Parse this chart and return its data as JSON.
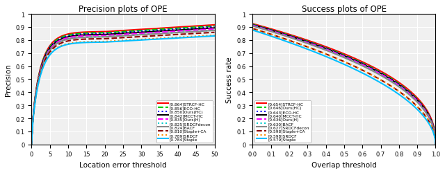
{
  "left_title": "Precision plots of OPE",
  "right_title": "Success plots of OPE",
  "left_xlabel": "Location error threshold",
  "left_ylabel": "Precision",
  "right_xlabel": "Overlap threshold",
  "right_ylabel": "Success rate",
  "left_xlim": [
    0,
    50
  ],
  "left_ylim": [
    0,
    1
  ],
  "right_xlim": [
    0,
    1
  ],
  "right_ylim": [
    0,
    1
  ],
  "left_xticks": [
    0,
    5,
    10,
    15,
    20,
    25,
    30,
    35,
    40,
    45,
    50
  ],
  "left_yticks": [
    0,
    0.1,
    0.2,
    0.3,
    0.4,
    0.5,
    0.6,
    0.7,
    0.8,
    0.9,
    1.0
  ],
  "right_xticks": [
    0,
    0.1,
    0.2,
    0.3,
    0.4,
    0.5,
    0.6,
    0.7,
    0.8,
    0.9,
    1.0
  ],
  "right_yticks": [
    0,
    0.1,
    0.2,
    0.3,
    0.4,
    0.5,
    0.6,
    0.7,
    0.8,
    0.9,
    1.0
  ],
  "precision_curves": [
    {
      "label": "[0.864]STRCF-HC",
      "score": 0.864,
      "color": "#FF0000",
      "lw": 1.5,
      "ls": "-"
    },
    {
      "label": "[0.856]ECO-HC",
      "score": 0.856,
      "color": "#00CC00",
      "lw": 1.5,
      "ls": "--"
    },
    {
      "label": "[0.850]Ours(HC)",
      "score": 0.85,
      "color": "#0000EE",
      "lw": 1.5,
      "ls": ":"
    },
    {
      "label": "[0.842]MCCT-HC",
      "score": 0.842,
      "color": "#000000",
      "lw": 1.5,
      "ls": "-"
    },
    {
      "label": "[0.835]Ours(H)",
      "score": 0.835,
      "color": "#FF00FF",
      "lw": 1.5,
      "ls": "--"
    },
    {
      "label": "[0.825]SRDCFdecon",
      "score": 0.825,
      "color": "#00CCCC",
      "lw": 1.5,
      "ls": ":"
    },
    {
      "label": "[0.824]BACF",
      "score": 0.824,
      "color": "#888888",
      "lw": 1.5,
      "ls": "-"
    },
    {
      "label": "[0.810]Staple+CA",
      "score": 0.81,
      "color": "#8B0000",
      "lw": 1.5,
      "ls": "--"
    },
    {
      "label": "[0.789]SRDCF",
      "score": 0.789,
      "color": "#FF8C00",
      "lw": 1.5,
      "ls": ":"
    },
    {
      "label": "[0.784]Staple",
      "score": 0.784,
      "color": "#00BFFF",
      "lw": 1.5,
      "ls": "-"
    }
  ],
  "success_curves": [
    {
      "label": "[0.654]STRCF-HC",
      "score": 0.654,
      "color": "#FF0000",
      "lw": 1.5,
      "ls": "-"
    },
    {
      "label": "[0.646]Ours(HC)",
      "score": 0.646,
      "color": "#00CC00",
      "lw": 1.5,
      "ls": "--"
    },
    {
      "label": "[0.643]ECO-HC",
      "score": 0.643,
      "color": "#0000EE",
      "lw": 1.5,
      "ls": ":"
    },
    {
      "label": "[0.640]MCCT-HC",
      "score": 0.64,
      "color": "#000000",
      "lw": 1.5,
      "ls": "-"
    },
    {
      "label": "[0.636]Ours(H)",
      "score": 0.636,
      "color": "#FF00FF",
      "lw": 1.5,
      "ls": "--"
    },
    {
      "label": "[0.630]BACF",
      "score": 0.63,
      "color": "#00CCCC",
      "lw": 1.5,
      "ls": ":"
    },
    {
      "label": "[0.627]SRDCFdecon",
      "score": 0.627,
      "color": "#888888",
      "lw": 1.5,
      "ls": "-"
    },
    {
      "label": "[0.598]Staple+CA",
      "score": 0.598,
      "color": "#8B0000",
      "lw": 1.5,
      "ls": "--"
    },
    {
      "label": "[0.598]SRDCF",
      "score": 0.598,
      "color": "#FF8C00",
      "lw": 1.5,
      "ls": ":"
    },
    {
      "label": "[0.579]Staple",
      "score": 0.579,
      "color": "#00BFFF",
      "lw": 1.5,
      "ls": "-"
    }
  ],
  "bg_color": "#f0f0f0",
  "grid_color": "#ffffff"
}
